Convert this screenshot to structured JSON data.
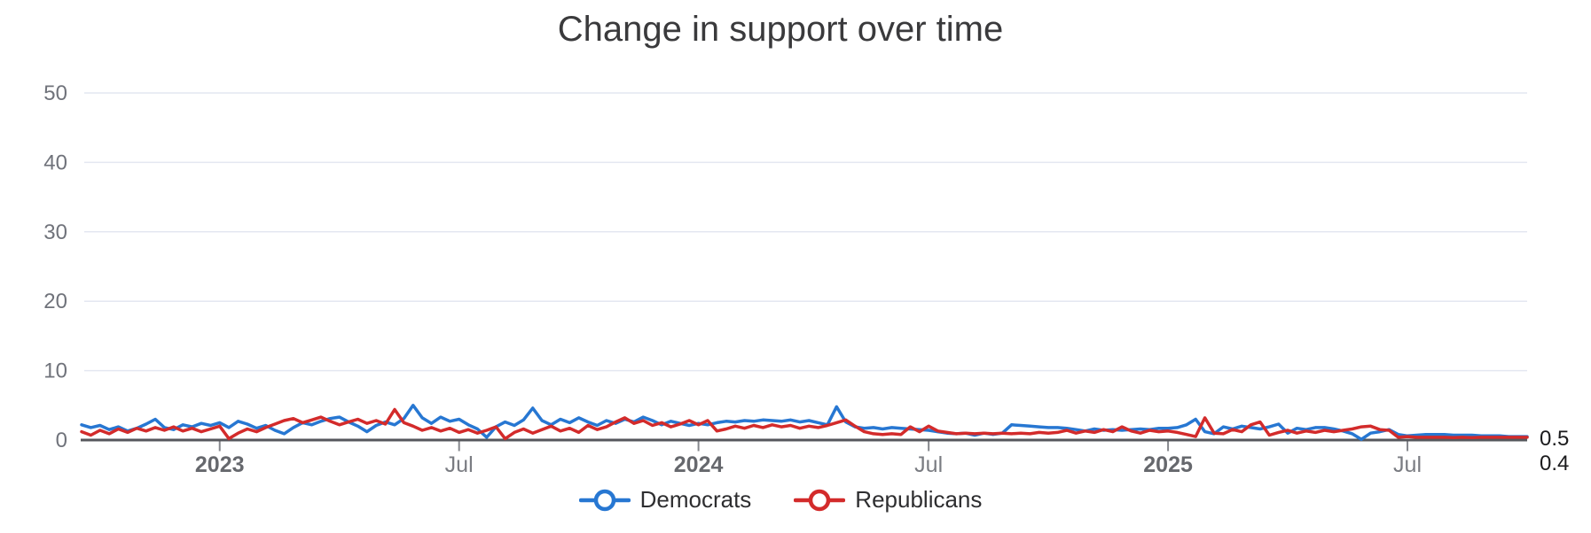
{
  "title": "Change in support over time",
  "colors": {
    "democrats": "#2777d2",
    "republicans": "#d32b2b",
    "grid": "#e4e7f1",
    "axis_line": "#56575c",
    "y_tick_label": "#70737b",
    "x_year_label": "#66686d",
    "x_month_label": "#7a7c82",
    "title_text": "#3a3a3c",
    "end_label_text": "#1b1b1d",
    "background": "#ffffff"
  },
  "end_labels": {
    "democrats": "0.5",
    "republicans": "0.4"
  },
  "legend": {
    "items": [
      {
        "label": "Democrats",
        "color": "#2777d2"
      },
      {
        "label": "Republicans",
        "color": "#d32b2b"
      }
    ]
  },
  "chart_data": {
    "type": "line",
    "title": "Change in support over time",
    "xlabel": "",
    "ylabel": "",
    "ylim": [
      0,
      50
    ],
    "y_ticks": [
      0,
      10,
      20,
      30,
      40,
      50
    ],
    "grid": "horizontal",
    "legend_position": "bottom-center",
    "x_ticks": [
      {
        "label": "2023",
        "index": 15,
        "bold": true
      },
      {
        "label": "Jul",
        "index": 41,
        "bold": false
      },
      {
        "label": "2024",
        "index": 67,
        "bold": true
      },
      {
        "label": "Jul",
        "index": 92,
        "bold": false
      },
      {
        "label": "2025",
        "index": 118,
        "bold": true
      },
      {
        "label": "Jul",
        "index": 144,
        "bold": false
      }
    ],
    "end_value_labels": [
      "0.5",
      "0.4"
    ],
    "series": [
      {
        "name": "Democrats",
        "color": "#2777d2",
        "values": [
          2.2,
          1.8,
          2.1,
          1.5,
          1.9,
          1.3,
          1.7,
          2.3,
          3.0,
          1.8,
          1.5,
          2.2,
          1.9,
          2.4,
          2.1,
          2.5,
          1.8,
          2.7,
          2.3,
          1.7,
          2.1,
          1.4,
          0.9,
          1.8,
          2.5,
          2.2,
          2.7,
          3.1,
          3.3,
          2.6,
          2.0,
          1.2,
          2.1,
          2.6,
          2.2,
          3.1,
          5.0,
          3.2,
          2.4,
          3.3,
          2.7,
          3.0,
          2.2,
          1.6,
          0.4,
          1.9,
          2.6,
          2.1,
          2.9,
          4.6,
          2.8,
          2.2,
          3.0,
          2.5,
          3.2,
          2.6,
          2.1,
          2.8,
          2.4,
          3.0,
          2.6,
          3.3,
          2.8,
          2.2,
          2.7,
          2.4,
          2.1,
          2.4,
          2.2,
          2.5,
          2.7,
          2.6,
          2.8,
          2.7,
          2.9,
          2.8,
          2.7,
          2.9,
          2.6,
          2.8,
          2.5,
          2.2,
          4.8,
          2.6,
          1.9,
          1.7,
          1.8,
          1.6,
          1.8,
          1.7,
          1.6,
          1.5,
          1.4,
          1.2,
          1.0,
          0.9,
          1.0,
          0.7,
          1.0,
          0.8,
          1.0,
          2.2,
          2.1,
          2.0,
          1.9,
          1.8,
          1.8,
          1.7,
          1.5,
          1.3,
          1.6,
          1.4,
          1.5,
          1.4,
          1.5,
          1.6,
          1.5,
          1.7,
          1.7,
          1.8,
          2.2,
          3.0,
          1.2,
          0.9,
          1.9,
          1.6,
          2.0,
          1.8,
          1.6,
          1.9,
          2.3,
          1.0,
          1.7,
          1.5,
          1.8,
          1.8,
          1.6,
          1.3,
          0.9,
          0.1,
          1.0,
          1.2,
          1.5,
          0.8,
          0.6,
          0.7,
          0.8,
          0.8,
          0.8,
          0.7,
          0.7,
          0.7,
          0.6,
          0.6,
          0.6,
          0.5,
          0.5,
          0.5
        ]
      },
      {
        "name": "Republicans",
        "color": "#d32b2b",
        "values": [
          1.2,
          0.7,
          1.4,
          0.9,
          1.6,
          1.1,
          1.7,
          1.3,
          1.8,
          1.4,
          1.9,
          1.3,
          1.7,
          1.2,
          1.6,
          2.0,
          0.2,
          1.0,
          1.6,
          1.2,
          1.8,
          2.3,
          2.8,
          3.1,
          2.5,
          2.9,
          3.3,
          2.7,
          2.2,
          2.6,
          3.0,
          2.4,
          2.8,
          2.3,
          4.4,
          2.5,
          2.0,
          1.4,
          1.8,
          1.3,
          1.7,
          1.1,
          1.5,
          1.0,
          1.4,
          1.9,
          0.2,
          1.1,
          1.6,
          1.0,
          1.5,
          2.0,
          1.3,
          1.7,
          1.1,
          2.1,
          1.5,
          1.9,
          2.6,
          3.2,
          2.4,
          2.8,
          2.1,
          2.5,
          1.9,
          2.3,
          2.8,
          2.2,
          2.8,
          1.3,
          1.6,
          2.0,
          1.7,
          2.1,
          1.8,
          2.2,
          1.9,
          2.1,
          1.7,
          2.0,
          1.8,
          2.1,
          2.5,
          2.9,
          2.0,
          1.2,
          0.9,
          0.8,
          0.9,
          0.8,
          1.9,
          1.2,
          2.0,
          1.3,
          1.1,
          0.9,
          1.0,
          0.9,
          1.0,
          0.9,
          1.0,
          0.9,
          1.0,
          0.9,
          1.1,
          1.0,
          1.1,
          1.4,
          1.0,
          1.3,
          1.1,
          1.5,
          1.2,
          1.9,
          1.3,
          1.0,
          1.4,
          1.2,
          1.3,
          1.1,
          0.8,
          0.5,
          3.2,
          1.0,
          0.9,
          1.5,
          1.2,
          2.2,
          2.6,
          0.7,
          1.1,
          1.4,
          1.0,
          1.3,
          1.1,
          1.4,
          1.2,
          1.4,
          1.6,
          1.9,
          2.0,
          1.5,
          1.4,
          0.4,
          0.5,
          0.4,
          0.4,
          0.4,
          0.4,
          0.35,
          0.4,
          0.35,
          0.4,
          0.4,
          0.4,
          0.4,
          0.4,
          0.4
        ]
      }
    ]
  }
}
